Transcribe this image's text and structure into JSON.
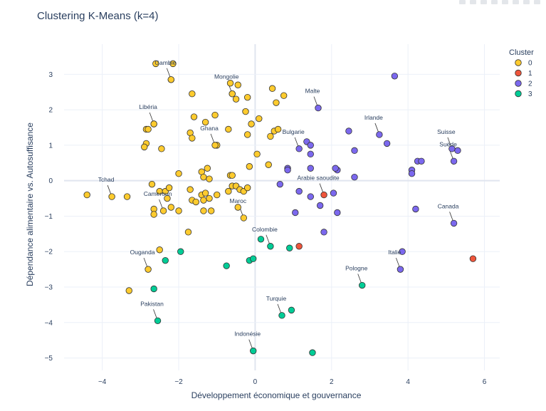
{
  "chart_data": {
    "type": "scatter",
    "title": "Clustering K-Means (k=4)",
    "xlabel": "Développement économique et gouvernance",
    "ylabel": "Dépendance alimentaire vs. Autosuffisance",
    "xlim": [
      -5,
      6.4
    ],
    "ylim": [
      -5.35,
      3.85
    ],
    "x_ticks": [
      -4,
      -2,
      0,
      2,
      4,
      6
    ],
    "y_ticks": [
      3,
      2,
      1,
      0,
      -1,
      -2,
      -3,
      -4,
      -5
    ],
    "grid": true,
    "legend": {
      "title": "Cluster",
      "placement": "top-right"
    },
    "series": [
      {
        "name": "0",
        "color": "#FECB2E",
        "points": [
          [
            -2.6,
            3.3
          ],
          [
            -2.15,
            3.3
          ],
          [
            -2.2,
            2.85
          ],
          [
            -1.65,
            2.45
          ],
          [
            -0.65,
            2.75
          ],
          [
            -0.45,
            2.7
          ],
          [
            -0.6,
            2.45
          ],
          [
            -0.5,
            2.3
          ],
          [
            -0.2,
            2.35
          ],
          [
            0.45,
            2.6
          ],
          [
            0.75,
            2.4
          ],
          [
            0.55,
            2.2
          ],
          [
            -2.65,
            1.6
          ],
          [
            -2.85,
            1.45
          ],
          [
            -2.8,
            1.45
          ],
          [
            -1.6,
            1.8
          ],
          [
            -1.3,
            1.65
          ],
          [
            -1.05,
            1.85
          ],
          [
            -0.25,
            1.95
          ],
          [
            -0.1,
            1.6
          ],
          [
            0.1,
            1.75
          ],
          [
            -1.7,
            1.35
          ],
          [
            -1.65,
            1.2
          ],
          [
            -1.0,
            1.0
          ],
          [
            -0.7,
            1.45
          ],
          [
            -0.2,
            1.3
          ],
          [
            0.4,
            1.25
          ],
          [
            0.5,
            1.4
          ],
          [
            0.6,
            1.45
          ],
          [
            -2.85,
            1.05
          ],
          [
            -2.9,
            0.95
          ],
          [
            -2.45,
            0.9
          ],
          [
            0.05,
            0.75
          ],
          [
            0.35,
            0.45
          ],
          [
            -0.15,
            0.4
          ],
          [
            -2.0,
            0.2
          ],
          [
            -1.4,
            0.25
          ],
          [
            -1.25,
            0.35
          ],
          [
            -1.35,
            0.1
          ],
          [
            -1.2,
            0.05
          ],
          [
            -0.65,
            0.15
          ],
          [
            -0.6,
            0.15
          ],
          [
            -4.4,
            -0.4
          ],
          [
            -3.35,
            -0.45
          ],
          [
            -2.7,
            -0.1
          ],
          [
            -2.5,
            -0.3
          ],
          [
            -2.35,
            -0.3
          ],
          [
            -2.25,
            -0.2
          ],
          [
            -2.3,
            -0.5
          ],
          [
            -1.7,
            -0.25
          ],
          [
            -1.4,
            -0.4
          ],
          [
            -1.3,
            -0.35
          ],
          [
            -1.0,
            -0.4
          ],
          [
            -0.7,
            -0.3
          ],
          [
            -0.6,
            -0.15
          ],
          [
            -0.5,
            -0.15
          ],
          [
            -0.4,
            -0.25
          ],
          [
            -0.3,
            -0.3
          ],
          [
            -0.2,
            -0.2
          ],
          [
            -1.65,
            -0.55
          ],
          [
            -1.55,
            -0.6
          ],
          [
            -1.35,
            -0.55
          ],
          [
            -1.2,
            -0.5
          ],
          [
            -2.65,
            -0.8
          ],
          [
            -2.65,
            -0.95
          ],
          [
            -2.2,
            -0.75
          ],
          [
            -2.0,
            -0.85
          ],
          [
            -1.35,
            -0.85
          ],
          [
            -1.15,
            -0.85
          ],
          [
            -0.45,
            -0.75
          ],
          [
            -1.75,
            -1.45
          ],
          [
            -2.5,
            -1.95
          ],
          [
            -3.3,
            -3.1
          ]
        ]
      },
      {
        "name": "1",
        "color": "#EF553B",
        "points": [
          [
            1.15,
            -1.85
          ],
          [
            5.7,
            -2.2
          ]
        ]
      },
      {
        "name": "2",
        "color": "#7B68EE",
        "points": [
          [
            3.65,
            2.95
          ],
          [
            2.45,
            1.4
          ],
          [
            3.45,
            1.05
          ],
          [
            5.3,
            0.85
          ],
          [
            4.25,
            0.55
          ],
          [
            4.35,
            0.55
          ],
          [
            4.1,
            0.3
          ],
          [
            4.1,
            0.2
          ],
          [
            2.6,
            0.85
          ],
          [
            1.35,
            1.1
          ],
          [
            1.45,
            1.0
          ],
          [
            1.45,
            0.75
          ],
          [
            0.85,
            0.35
          ],
          [
            0.85,
            0.3
          ],
          [
            1.45,
            0.35
          ],
          [
            2.15,
            0.3
          ],
          [
            2.1,
            0.35
          ],
          [
            2.6,
            0.1
          ],
          [
            0.65,
            -0.1
          ],
          [
            1.15,
            -0.3
          ],
          [
            1.45,
            -0.45
          ],
          [
            2.05,
            -0.35
          ],
          [
            1.7,
            -0.7
          ],
          [
            1.05,
            -0.9
          ],
          [
            2.15,
            -0.9
          ],
          [
            4.2,
            -0.8
          ],
          [
            1.8,
            -1.45
          ],
          [
            3.85,
            -2.0
          ]
        ]
      },
      {
        "name": "3",
        "color": "#00CC96",
        "points": [
          [
            0.15,
            -1.65
          ],
          [
            0.9,
            -1.9
          ],
          [
            -1.95,
            -2.0
          ],
          [
            -2.35,
            -2.25
          ],
          [
            -0.75,
            -2.4
          ],
          [
            -0.15,
            -2.25
          ],
          [
            -0.05,
            -2.2
          ],
          [
            -2.65,
            -3.05
          ],
          [
            0.95,
            -3.65
          ],
          [
            1.5,
            -4.85
          ]
        ]
      }
    ],
    "annotations": [
      {
        "text": "Gambie",
        "cluster": "0",
        "x": -2.2,
        "y": 2.85
      },
      {
        "text": "Mongolie",
        "cluster": "0",
        "x": -0.6,
        "y": 2.45
      },
      {
        "text": "Malte",
        "cluster": "2",
        "x": 1.65,
        "y": 2.05
      },
      {
        "text": "Libéria",
        "cluster": "0",
        "x": -2.65,
        "y": 1.6
      },
      {
        "text": "Irlande",
        "cluster": "2",
        "x": 3.25,
        "y": 1.3
      },
      {
        "text": "Ghana",
        "cluster": "0",
        "x": -1.05,
        "y": 1.0
      },
      {
        "text": "Bulgarie",
        "cluster": "2",
        "x": 1.15,
        "y": 0.9
      },
      {
        "text": "Suisse",
        "cluster": "2",
        "x": 5.15,
        "y": 0.9
      },
      {
        "text": "Suède",
        "cluster": "2",
        "x": 5.2,
        "y": 0.55
      },
      {
        "text": "Arabie saoudite",
        "cluster": "1",
        "x": 1.8,
        "y": -0.4
      },
      {
        "text": "Tchad",
        "cluster": "0",
        "x": -3.75,
        "y": -0.45
      },
      {
        "text": "Cameroun",
        "cluster": "0",
        "x": -2.4,
        "y": -0.85
      },
      {
        "text": "Maroc",
        "cluster": "0",
        "x": -0.3,
        "y": -1.05
      },
      {
        "text": "Canada",
        "cluster": "2",
        "x": 5.2,
        "y": -1.2
      },
      {
        "text": "Colombie",
        "cluster": "3",
        "x": 0.4,
        "y": -1.85
      },
      {
        "text": "Ouganda",
        "cluster": "0",
        "x": -2.8,
        "y": -2.5
      },
      {
        "text": "Italie",
        "cluster": "2",
        "x": 3.8,
        "y": -2.5
      },
      {
        "text": "Pologne",
        "cluster": "3",
        "x": 2.8,
        "y": -2.95
      },
      {
        "text": "Turquie",
        "cluster": "3",
        "x": 0.7,
        "y": -3.8
      },
      {
        "text": "Pakistan",
        "cluster": "3",
        "x": -2.55,
        "y": -3.95
      },
      {
        "text": "Indonésie",
        "cluster": "3",
        "x": -0.05,
        "y": -4.8
      }
    ]
  }
}
